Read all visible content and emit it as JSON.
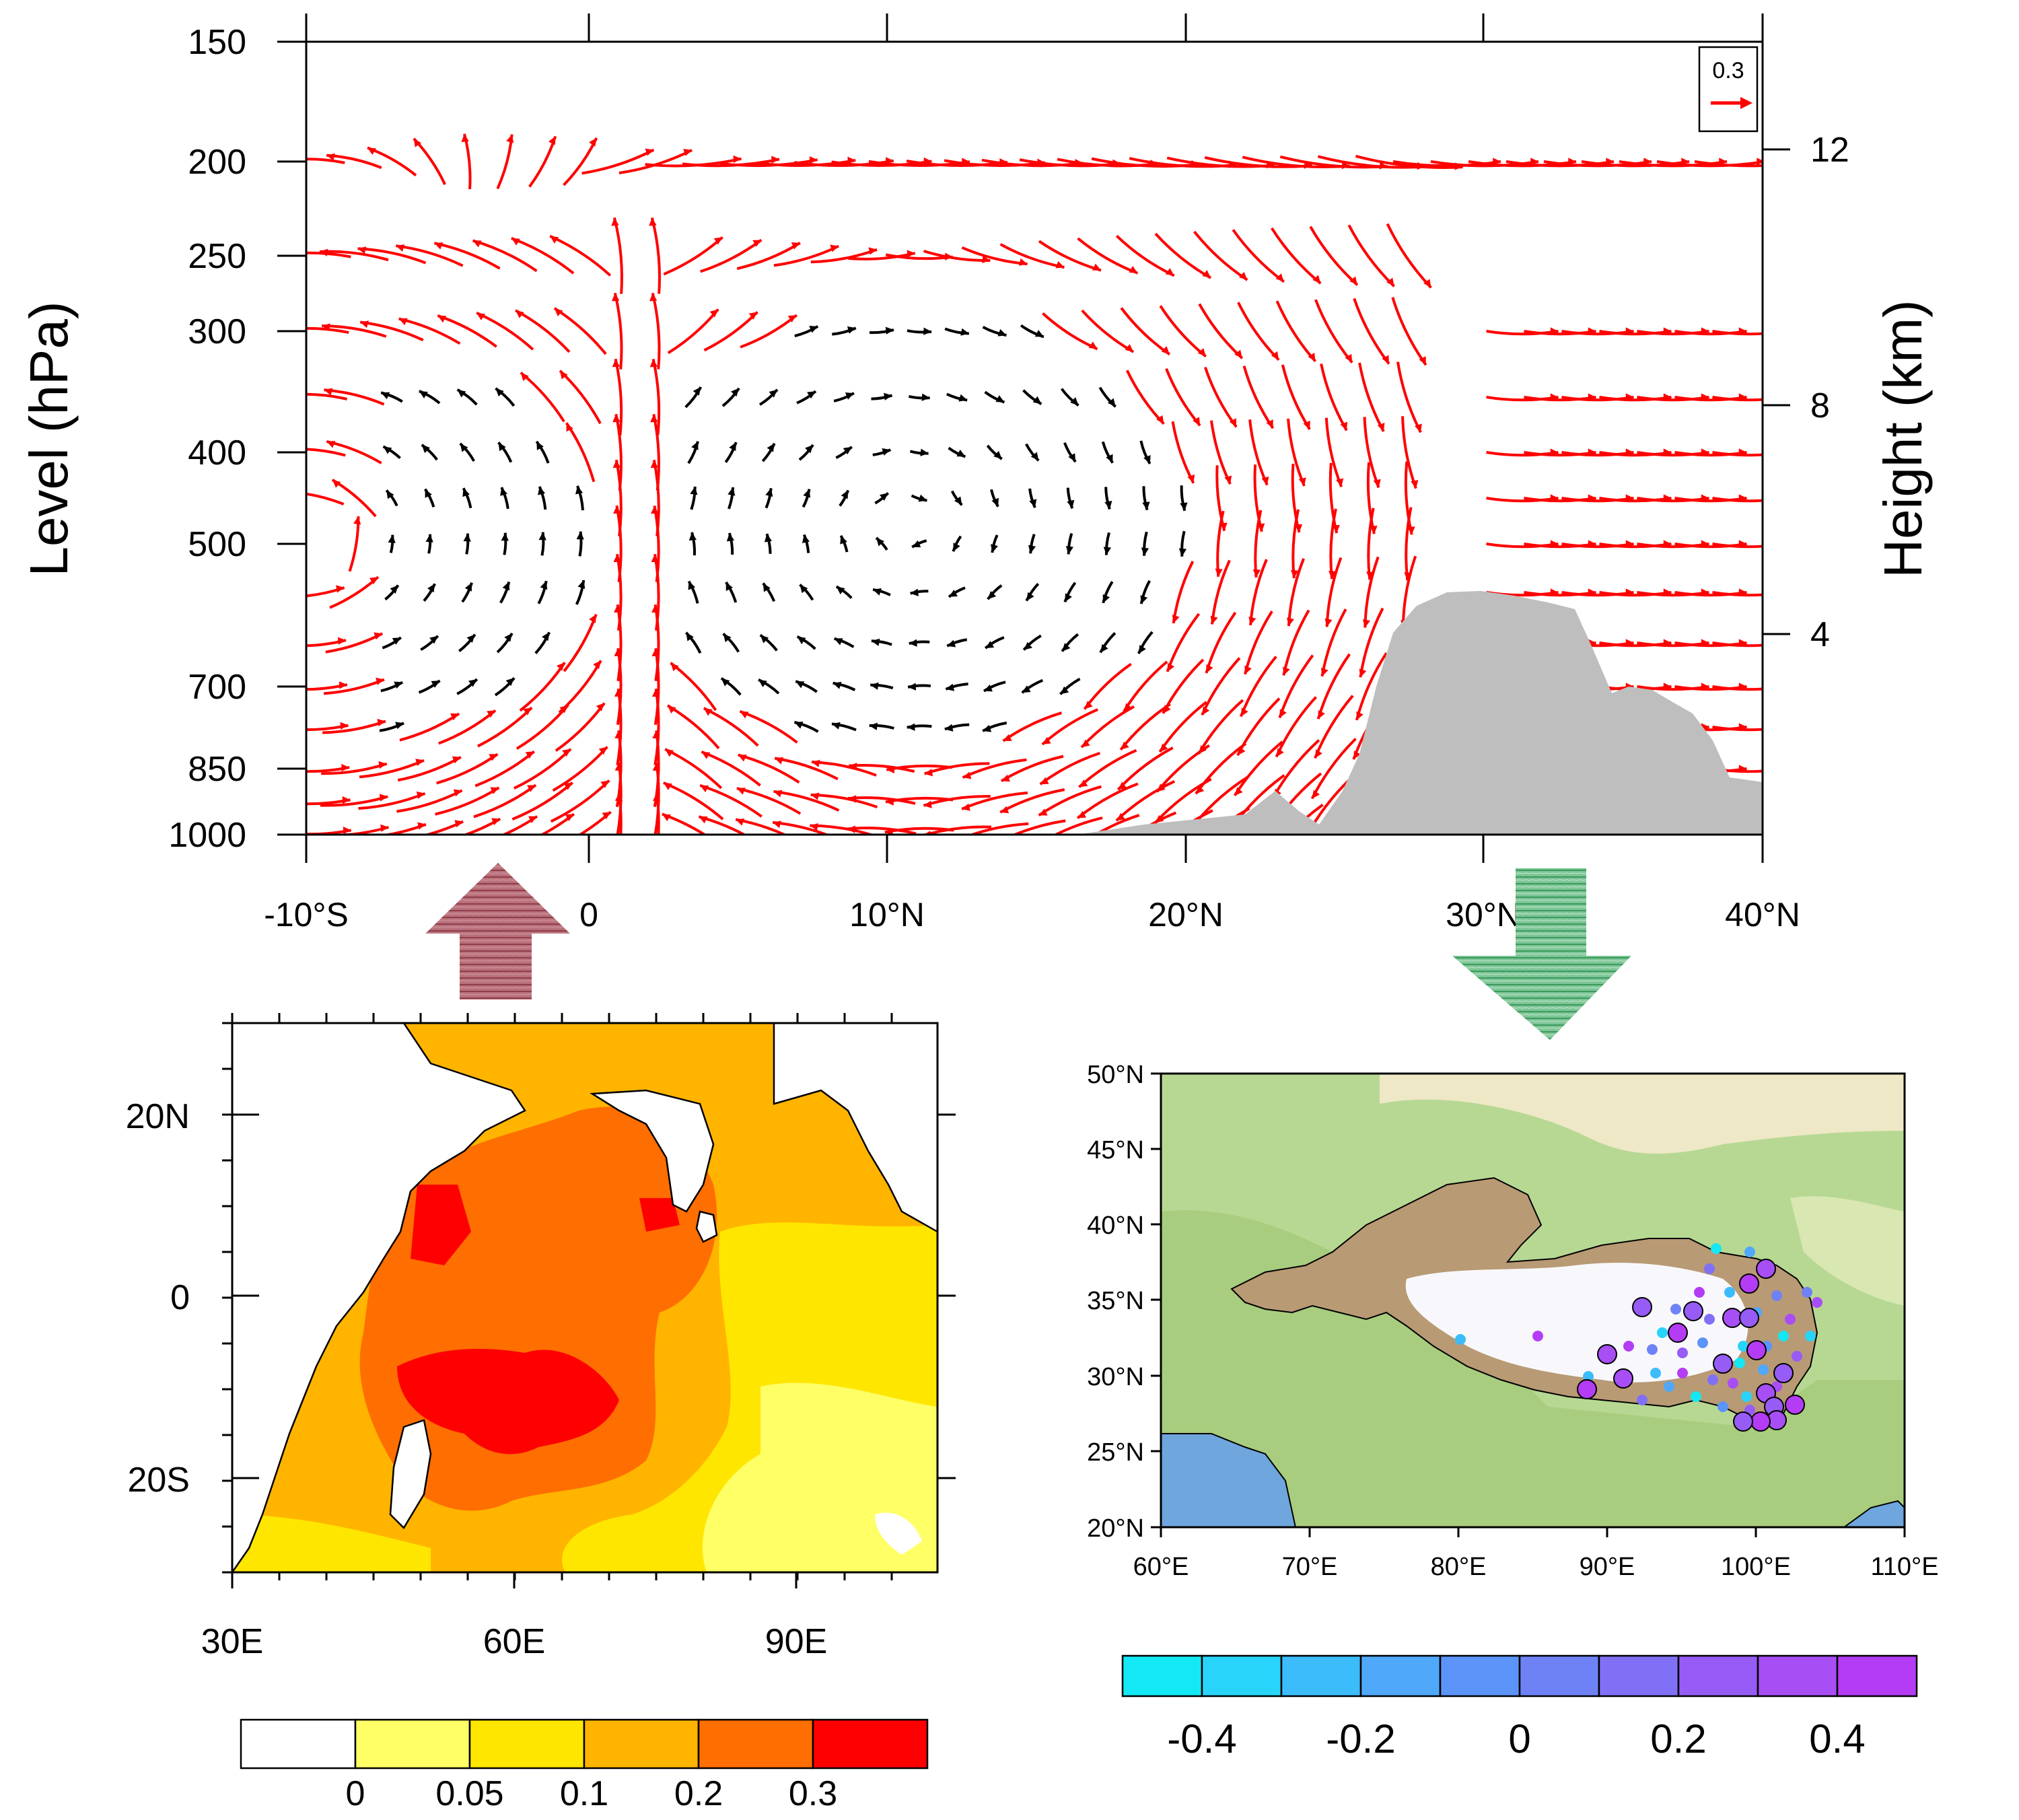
{
  "panel_top": {
    "y_label": "Level (hPa)",
    "y2_label": "Height (km)",
    "pressure_ticks": [
      "150",
      "200",
      "250",
      "300",
      "400",
      "500",
      "700",
      "850",
      "1000"
    ],
    "height_ticks": [
      "12",
      "8",
      "4"
    ],
    "x_ticks": [
      "-10°S",
      "0",
      "10°N",
      "20°N",
      "30°N",
      "40°N"
    ],
    "ref_vector": "0.3",
    "colors": {
      "strong": "#ff0000",
      "weak": "#000000",
      "terrain": "#bebebe"
    }
  },
  "arrows": {
    "up_color": "#a55a64",
    "down_color": "#5aae78"
  },
  "panel_left": {
    "y_ticks": [
      "20N",
      "0",
      "20S"
    ],
    "x_ticks": [
      "30E",
      "60E",
      "90E"
    ],
    "colorbar": {
      "labels": [
        "0",
        "0.05",
        "0.1",
        "0.2",
        "0.3"
      ],
      "colors": [
        "#ffffff",
        "#ffff66",
        "#ffe600",
        "#ffb400",
        "#ff6e00",
        "#ff0000"
      ]
    }
  },
  "panel_right": {
    "y_ticks": [
      "50°N",
      "45°N",
      "40°N",
      "35°N",
      "30°N",
      "25°N",
      "20°N"
    ],
    "x_ticks": [
      "60°E",
      "70°E",
      "80°E",
      "90°E",
      "100°E",
      "110°E"
    ],
    "colorbar": {
      "labels": [
        "-0.4",
        "-0.2",
        "0",
        "0.2",
        "0.4"
      ],
      "colors": [
        "#14e8f5",
        "#28d4fa",
        "#3cbcfa",
        "#50a8fa",
        "#5c94fa",
        "#6e82f5",
        "#8070f5",
        "#965cf5",
        "#a84ef5",
        "#b43cf5"
      ]
    }
  }
}
